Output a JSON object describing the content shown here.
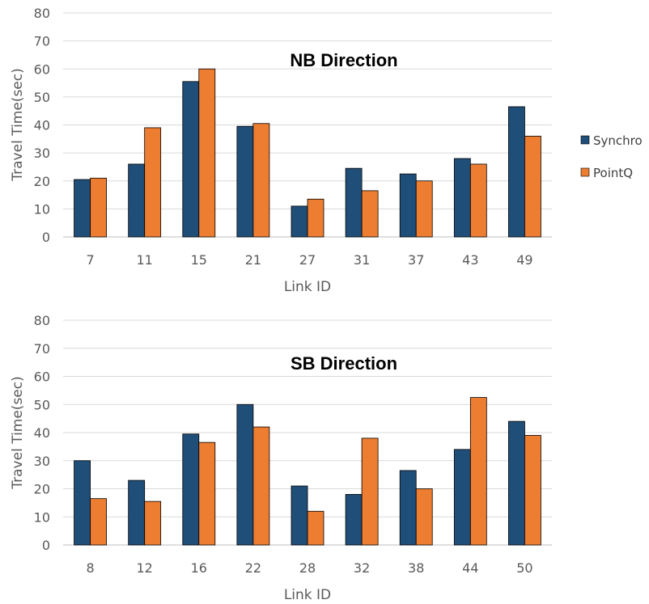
{
  "chart_data": [
    {
      "type": "bar",
      "title": "NB Direction",
      "xlabel": "Link ID",
      "ylabel": "Travel Time(sec)",
      "ylim": [
        0,
        80
      ],
      "yticks": [
        "0",
        "10",
        "20",
        "30",
        "40",
        "50",
        "60",
        "70",
        "80"
      ],
      "categories": [
        "7",
        "11",
        "15",
        "21",
        "27",
        "31",
        "37",
        "43",
        "49"
      ],
      "series": [
        {
          "name": "Synchro",
          "values": [
            20.5,
            26,
            55.5,
            39.5,
            11,
            24.5,
            22.5,
            28,
            46.5
          ]
        },
        {
          "name": "PointQ",
          "values": [
            21,
            39,
            60,
            40.5,
            13.5,
            16.5,
            20,
            26,
            36
          ]
        }
      ],
      "grid": true
    },
    {
      "type": "bar",
      "title": "SB Direction",
      "xlabel": "Link ID",
      "ylabel": "Travel Time(sec)",
      "ylim": [
        0,
        80
      ],
      "yticks": [
        "0",
        "10",
        "20",
        "30",
        "40",
        "50",
        "60",
        "70",
        "80"
      ],
      "categories": [
        "8",
        "12",
        "16",
        "22",
        "28",
        "32",
        "38",
        "44",
        "50"
      ],
      "series": [
        {
          "name": "Synchro",
          "values": [
            30,
            23,
            39.5,
            50,
            21,
            18,
            26.5,
            34,
            44
          ]
        },
        {
          "name": "PointQ",
          "values": [
            16.5,
            15.5,
            36.5,
            42,
            12,
            38,
            20,
            52.5,
            39
          ]
        }
      ],
      "grid": true
    }
  ],
  "legend": {
    "placement": "right",
    "items": [
      {
        "label": "Synchro",
        "color": "#1F4E79"
      },
      {
        "label": "PointQ",
        "color": "#ED7D31"
      }
    ]
  },
  "colors": {
    "synchro": "#1F4E79",
    "pointq": "#ED7D31",
    "grid": "#D9D9D9",
    "bar_outline": "#000000"
  }
}
